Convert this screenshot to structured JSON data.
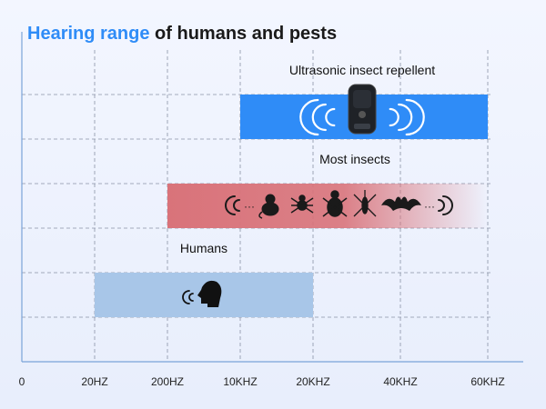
{
  "title": {
    "accent": "Hearing range",
    "rest": " of humans and pests"
  },
  "chart_data": {
    "type": "bar",
    "orientation": "horizontal-range",
    "title": "Hearing range of humans and pests",
    "xlabel": "",
    "ylabel": "",
    "grid": true,
    "x_ticks": [
      "0",
      "20HZ",
      "200HZ",
      "10KHZ",
      "20KHZ",
      "40KHZ",
      "60KHZ"
    ],
    "series": [
      {
        "name": "Ultrasonic insect repellent",
        "start_tick": "10KHZ",
        "end_tick": "60KHZ",
        "color": "#2f8cf7",
        "icon": "repellent-device-icon"
      },
      {
        "name": "Most insects",
        "start_tick": "200HZ",
        "end_tick": "60KHZ",
        "color": "#d9737a",
        "fade": true,
        "icon": "pests-icon"
      },
      {
        "name": "Humans",
        "start_tick": "20HZ",
        "end_tick": "20KHZ",
        "color": "#a8c6e8",
        "icon": "human-head-icon"
      }
    ]
  },
  "colors": {
    "accent": "#2f8cf7",
    "grid": "#8a93a6",
    "axis": "#7aa3d8"
  }
}
